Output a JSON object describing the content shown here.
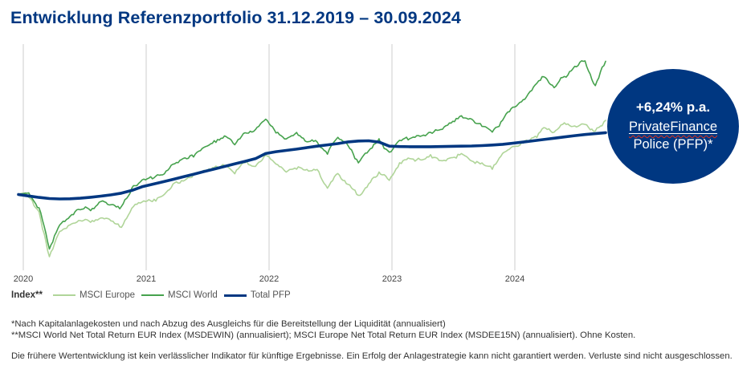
{
  "title": "Entwicklung Referenzportfolio 31.12.2019 – 30.09.2024",
  "badge": {
    "line1": "+6,24% p.a.",
    "line2": "PrivateFinance",
    "line3": "Police (PFP)*"
  },
  "legend": {
    "label": "Index**",
    "items": [
      {
        "name": "MSCI Europe",
        "color": "#b0d599"
      },
      {
        "name": "MSCI World",
        "color": "#46a24d"
      },
      {
        "name": "Total PFP",
        "color": "#003781"
      }
    ]
  },
  "footnotes": [
    "*Nach Kapitalanlagekosten und nach Abzug des Ausgleichs für die Bereitstellung der Liquidität (annualisiert)",
    "**MSCI World Net Total Return EUR Index (MSDEWIN) (annualisiert); MSCI Europe Net Total Return EUR Index (MSDEE15N) (annualisiert). Ohne Kosten.",
    "Die frühere Wertentwicklung ist kein verlässlicher Indikator für künftige Ergebnisse. Ein Erfolg der Anlagestrategie kann nicht garantiert werden. Verluste sind nicht ausgeschlossen."
  ],
  "colors": {
    "brand_navy": "#003781",
    "msci_world_green": "#46a24d",
    "msci_europe_green": "#b0d599",
    "grid_gray": "#cccccc",
    "axis_label_gray": "#444444",
    "text_dark": "#333333",
    "spellcheck_red": "#e0311c"
  },
  "chart_data": {
    "type": "line",
    "title": "Entwicklung Referenzportfolio 31.12.2019 – 30.09.2024",
    "x_ticks": [
      "2020",
      "2021",
      "2022",
      "2023",
      "2024"
    ],
    "x_start": "2019-12",
    "x_end": "2024-09",
    "frequency": "monthly",
    "baseline": 100,
    "y_axis_labels": "none",
    "ylim": [
      60,
      181
    ],
    "grid": "vertical-only",
    "legend_position": "bottom-left",
    "series": [
      {
        "name": "MSCI Europe",
        "color": "#b0d599",
        "volatile": true,
        "values": [
          100,
          98.5,
          91,
          66.5,
          80,
          83.5,
          86,
          85,
          87.5,
          86,
          81.5,
          93,
          96.5,
          96,
          98.5,
          105,
          107,
          110,
          112,
          114,
          116.5,
          112.5,
          117.5,
          115,
          121,
          117.5,
          112.5,
          114,
          113.5,
          112.5,
          103.5,
          111,
          105.5,
          99,
          105.5,
          112.5,
          108,
          116,
          118.5,
          118,
          121,
          117.5,
          120,
          122.5,
          119,
          117.5,
          113.5,
          120.5,
          125,
          127,
          130,
          135,
          133,
          137.5,
          135.5,
          137,
          134.5,
          140
        ]
      },
      {
        "name": "MSCI World",
        "color": "#46a24d",
        "volatile": true,
        "values": [
          100,
          100.5,
          93,
          71,
          85,
          89,
          91.5,
          92,
          96.5,
          95,
          93,
          103,
          108,
          109,
          111.5,
          116,
          119,
          120.5,
          125,
          127.5,
          131,
          126.5,
          133.5,
          135.5,
          140.5,
          134,
          130,
          134,
          129.5,
          128.5,
          121.5,
          131.5,
          127.5,
          117,
          124,
          129.5,
          122,
          128.5,
          129.5,
          131.5,
          132,
          134.5,
          139.5,
          142.5,
          140,
          137.5,
          133.5,
          140.5,
          146.5,
          151.5,
          158,
          164,
          158.5,
          164,
          169,
          171,
          159,
          172
        ]
      },
      {
        "name": "Total PFP",
        "color": "#003781",
        "volatile": false,
        "values": [
          99.8,
          99,
          98.2,
          97.6,
          97.4,
          97.5,
          97.8,
          98.3,
          98.9,
          99.6,
          100.5,
          102,
          104,
          105.3,
          106.6,
          108,
          109.4,
          110.8,
          112.2,
          113.6,
          115,
          116.4,
          117.8,
          119.2,
          122,
          123,
          123.7,
          124.4,
          125.2,
          126,
          126.7,
          127.4,
          128.3,
          128.8,
          128.9,
          128.2,
          126,
          125.8,
          125.7,
          125.7,
          125.7,
          125.8,
          125.9,
          126,
          126.1,
          126.3,
          126.6,
          127,
          127.6,
          128.2,
          128.9,
          129.6,
          130.3,
          131,
          131.7,
          132.3,
          132.8,
          133.3
        ]
      }
    ]
  }
}
